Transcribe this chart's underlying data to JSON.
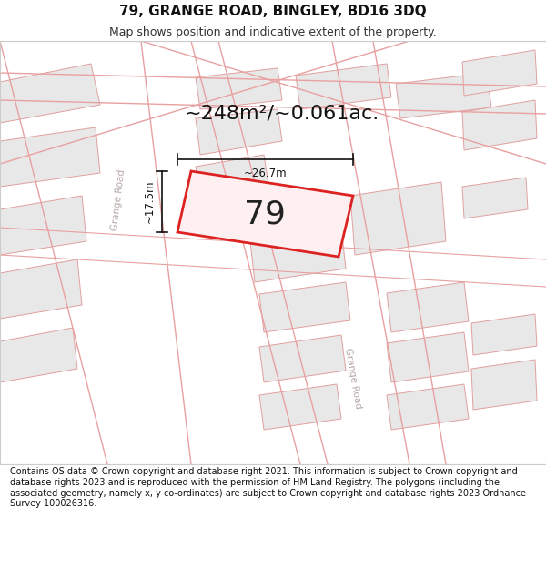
{
  "title": "79, GRANGE ROAD, BINGLEY, BD16 3DQ",
  "subtitle": "Map shows position and indicative extent of the property.",
  "area_text": "~248m²/~0.061ac.",
  "property_number": "79",
  "dim_width": "~26.7m",
  "dim_height": "~17.5m",
  "footer": "Contains OS data © Crown copyright and database right 2021. This information is subject to Crown copyright and database rights 2023 and is reproduced with the permission of HM Land Registry. The polygons (including the associated geometry, namely x, y co-ordinates) are subject to Crown copyright and database rights 2023 Ordnance Survey 100026316.",
  "map_bg": "#f8f7f6",
  "building_fill": "#e8e8e8",
  "building_stroke": "#e0a0a0",
  "road_line_color": "#e8a0a0",
  "road_fill": "#ffffff",
  "highlight_fill": "#fef0f0",
  "highlight_stroke": "#dd2222",
  "road_label_color": "#b8a8a8",
  "title_fontsize": 11,
  "subtitle_fontsize": 9,
  "area_fontsize": 16,
  "number_fontsize": 26,
  "footer_fontsize": 7.0
}
